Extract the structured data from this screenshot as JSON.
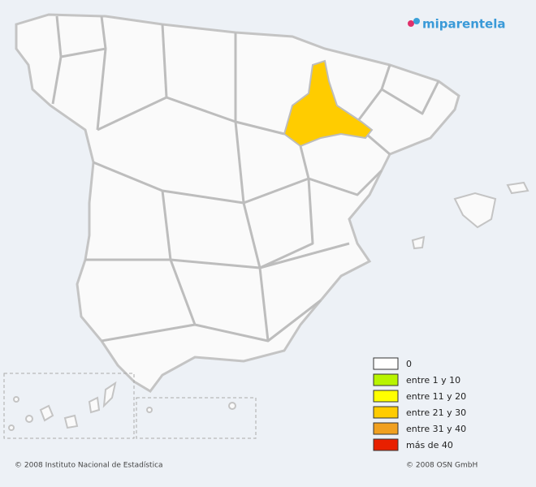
{
  "logo": "miparentela",
  "legend": {
    "items": [
      {
        "label": "0",
        "color": "#ffffff"
      },
      {
        "label": "entre 1 y 10",
        "color": "#b8f400"
      },
      {
        "label": "entre 11 y 20",
        "color": "#ffff00"
      },
      {
        "label": "entre 21 y 30",
        "color": "#ffcc00"
      },
      {
        "label": "entre 31 y 40",
        "color": "#f0a020"
      },
      {
        "label": "más de 40",
        "color": "#e82000"
      }
    ]
  },
  "footer": {
    "left": "© 2008 Instituto Nacional de Estadística",
    "right": "© 2008 OSN GmbH"
  }
}
